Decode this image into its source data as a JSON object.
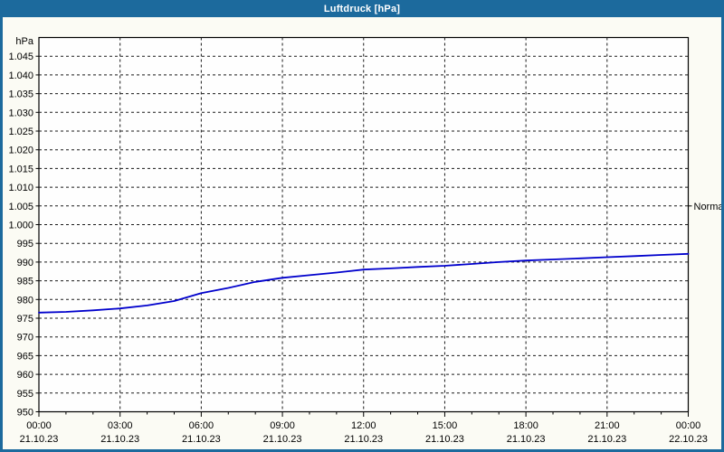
{
  "window": {
    "title": "Luftdruck [hPa]"
  },
  "colors": {
    "titlebar_bg": "#1c6a9d",
    "frame_border": "#1c6a9d",
    "page_bg": "#fbfbf4",
    "plot_bg": "#fefefe",
    "grid": "#1a1a1a",
    "axis": "#000000",
    "series_line": "#0000cc",
    "title_text": "#ffffff",
    "label_text": "#000000"
  },
  "chart_data": {
    "type": "line",
    "title": "Luftdruck [hPa]",
    "ylabel": "hPa",
    "ylim": [
      950,
      1050
    ],
    "x_unit": "hours",
    "xlim": [
      0,
      24
    ],
    "grid": "dashed",
    "legend": "none",
    "y_ticks": [
      {
        "value": 950,
        "label": "950"
      },
      {
        "value": 955,
        "label": "955"
      },
      {
        "value": 960,
        "label": "960"
      },
      {
        "value": 965,
        "label": "965"
      },
      {
        "value": 970,
        "label": "970"
      },
      {
        "value": 975,
        "label": "975"
      },
      {
        "value": 980,
        "label": "980"
      },
      {
        "value": 985,
        "label": "985"
      },
      {
        "value": 990,
        "label": "990"
      },
      {
        "value": 995,
        "label": "995"
      },
      {
        "value": 1000,
        "label": "1.000"
      },
      {
        "value": 1005,
        "label": "1.005"
      },
      {
        "value": 1010,
        "label": "1.010"
      },
      {
        "value": 1015,
        "label": "1.015"
      },
      {
        "value": 1020,
        "label": "1.020"
      },
      {
        "value": 1025,
        "label": "1.025"
      },
      {
        "value": 1030,
        "label": "1.030"
      },
      {
        "value": 1035,
        "label": "1.035"
      },
      {
        "value": 1040,
        "label": "1.040"
      },
      {
        "value": 1045,
        "label": "1.045"
      }
    ],
    "x_ticks": [
      {
        "hour": 0,
        "time": "00:00",
        "date": "21.10.23"
      },
      {
        "hour": 3,
        "time": "03:00",
        "date": "21.10.23"
      },
      {
        "hour": 6,
        "time": "06:00",
        "date": "21.10.23"
      },
      {
        "hour": 9,
        "time": "09:00",
        "date": "21.10.23"
      },
      {
        "hour": 12,
        "time": "12:00",
        "date": "21.10.23"
      },
      {
        "hour": 15,
        "time": "15:00",
        "date": "21.10.23"
      },
      {
        "hour": 18,
        "time": "18:00",
        "date": "21.10.23"
      },
      {
        "hour": 21,
        "time": "21:00",
        "date": "21.10.23"
      },
      {
        "hour": 24,
        "time": "00:00",
        "date": "22.10.23"
      }
    ],
    "x_minor_tick_every_hours": 1,
    "series": [
      {
        "name": "Luftdruck",
        "color": "#0000cc",
        "x_hours": [
          0,
          1,
          2,
          3,
          4,
          5,
          6,
          7,
          8,
          9,
          10,
          11,
          12,
          13,
          14,
          15,
          16,
          17,
          18,
          19,
          20,
          21,
          22,
          23,
          24
        ],
        "values": [
          976.5,
          976.7,
          977.1,
          977.6,
          978.4,
          979.6,
          981.7,
          983.1,
          984.7,
          985.8,
          986.5,
          987.2,
          988.0,
          988.3,
          988.7,
          989.0,
          989.5,
          990.0,
          990.4,
          990.7,
          991.0,
          991.3,
          991.6,
          991.9,
          992.2
        ]
      }
    ],
    "annotations": [
      {
        "label": "Normal",
        "value": 1005,
        "position": "right-axis"
      }
    ]
  }
}
